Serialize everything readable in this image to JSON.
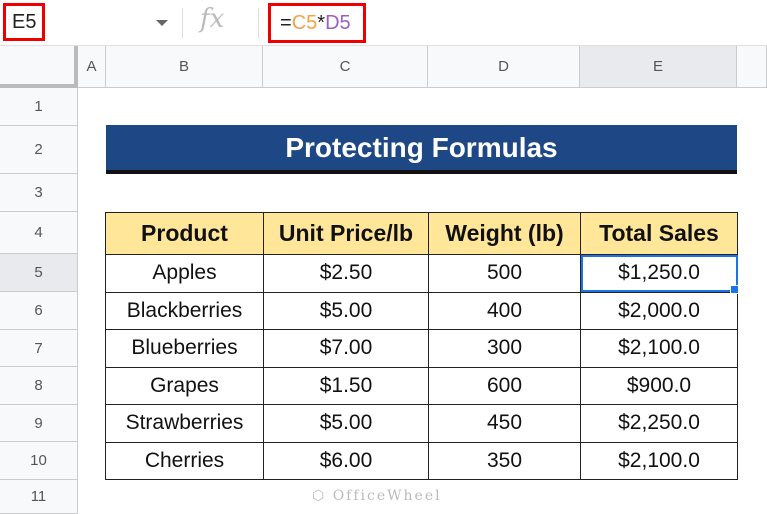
{
  "formula_bar": {
    "name_box": "E5",
    "fx_icon": "fx",
    "formula_parts": [
      "=",
      "C5",
      "*",
      "D5"
    ]
  },
  "columns": [
    "A",
    "B",
    "C",
    "D",
    "E"
  ],
  "rows": [
    "1",
    "2",
    "3",
    "4",
    "5",
    "6",
    "7",
    "8",
    "9",
    "10",
    "11"
  ],
  "title": "Protecting Formulas",
  "table": {
    "headers": [
      "Product",
      "Unit Price/lb",
      "Weight (lb)",
      "Total Sales"
    ],
    "rows": [
      [
        "Apples",
        "$2.50",
        "500",
        "$1,250.0"
      ],
      [
        "Blackberries",
        "$5.00",
        "400",
        "$2,000.0"
      ],
      [
        "Blueberries",
        "$7.00",
        "300",
        "$2,100.0"
      ],
      [
        "Grapes",
        "$1.50",
        "600",
        "$900.0"
      ],
      [
        "Strawberries",
        "$5.00",
        "450",
        "$2,250.0"
      ],
      [
        "Cherries",
        "$6.00",
        "350",
        "$2,100.0"
      ]
    ]
  },
  "watermark": "OfficeWheel",
  "colors": {
    "title_bg": "#1e4785",
    "header_bg": "#ffe699",
    "selection": "#1a73e8",
    "highlight_box": "#ee0000"
  }
}
